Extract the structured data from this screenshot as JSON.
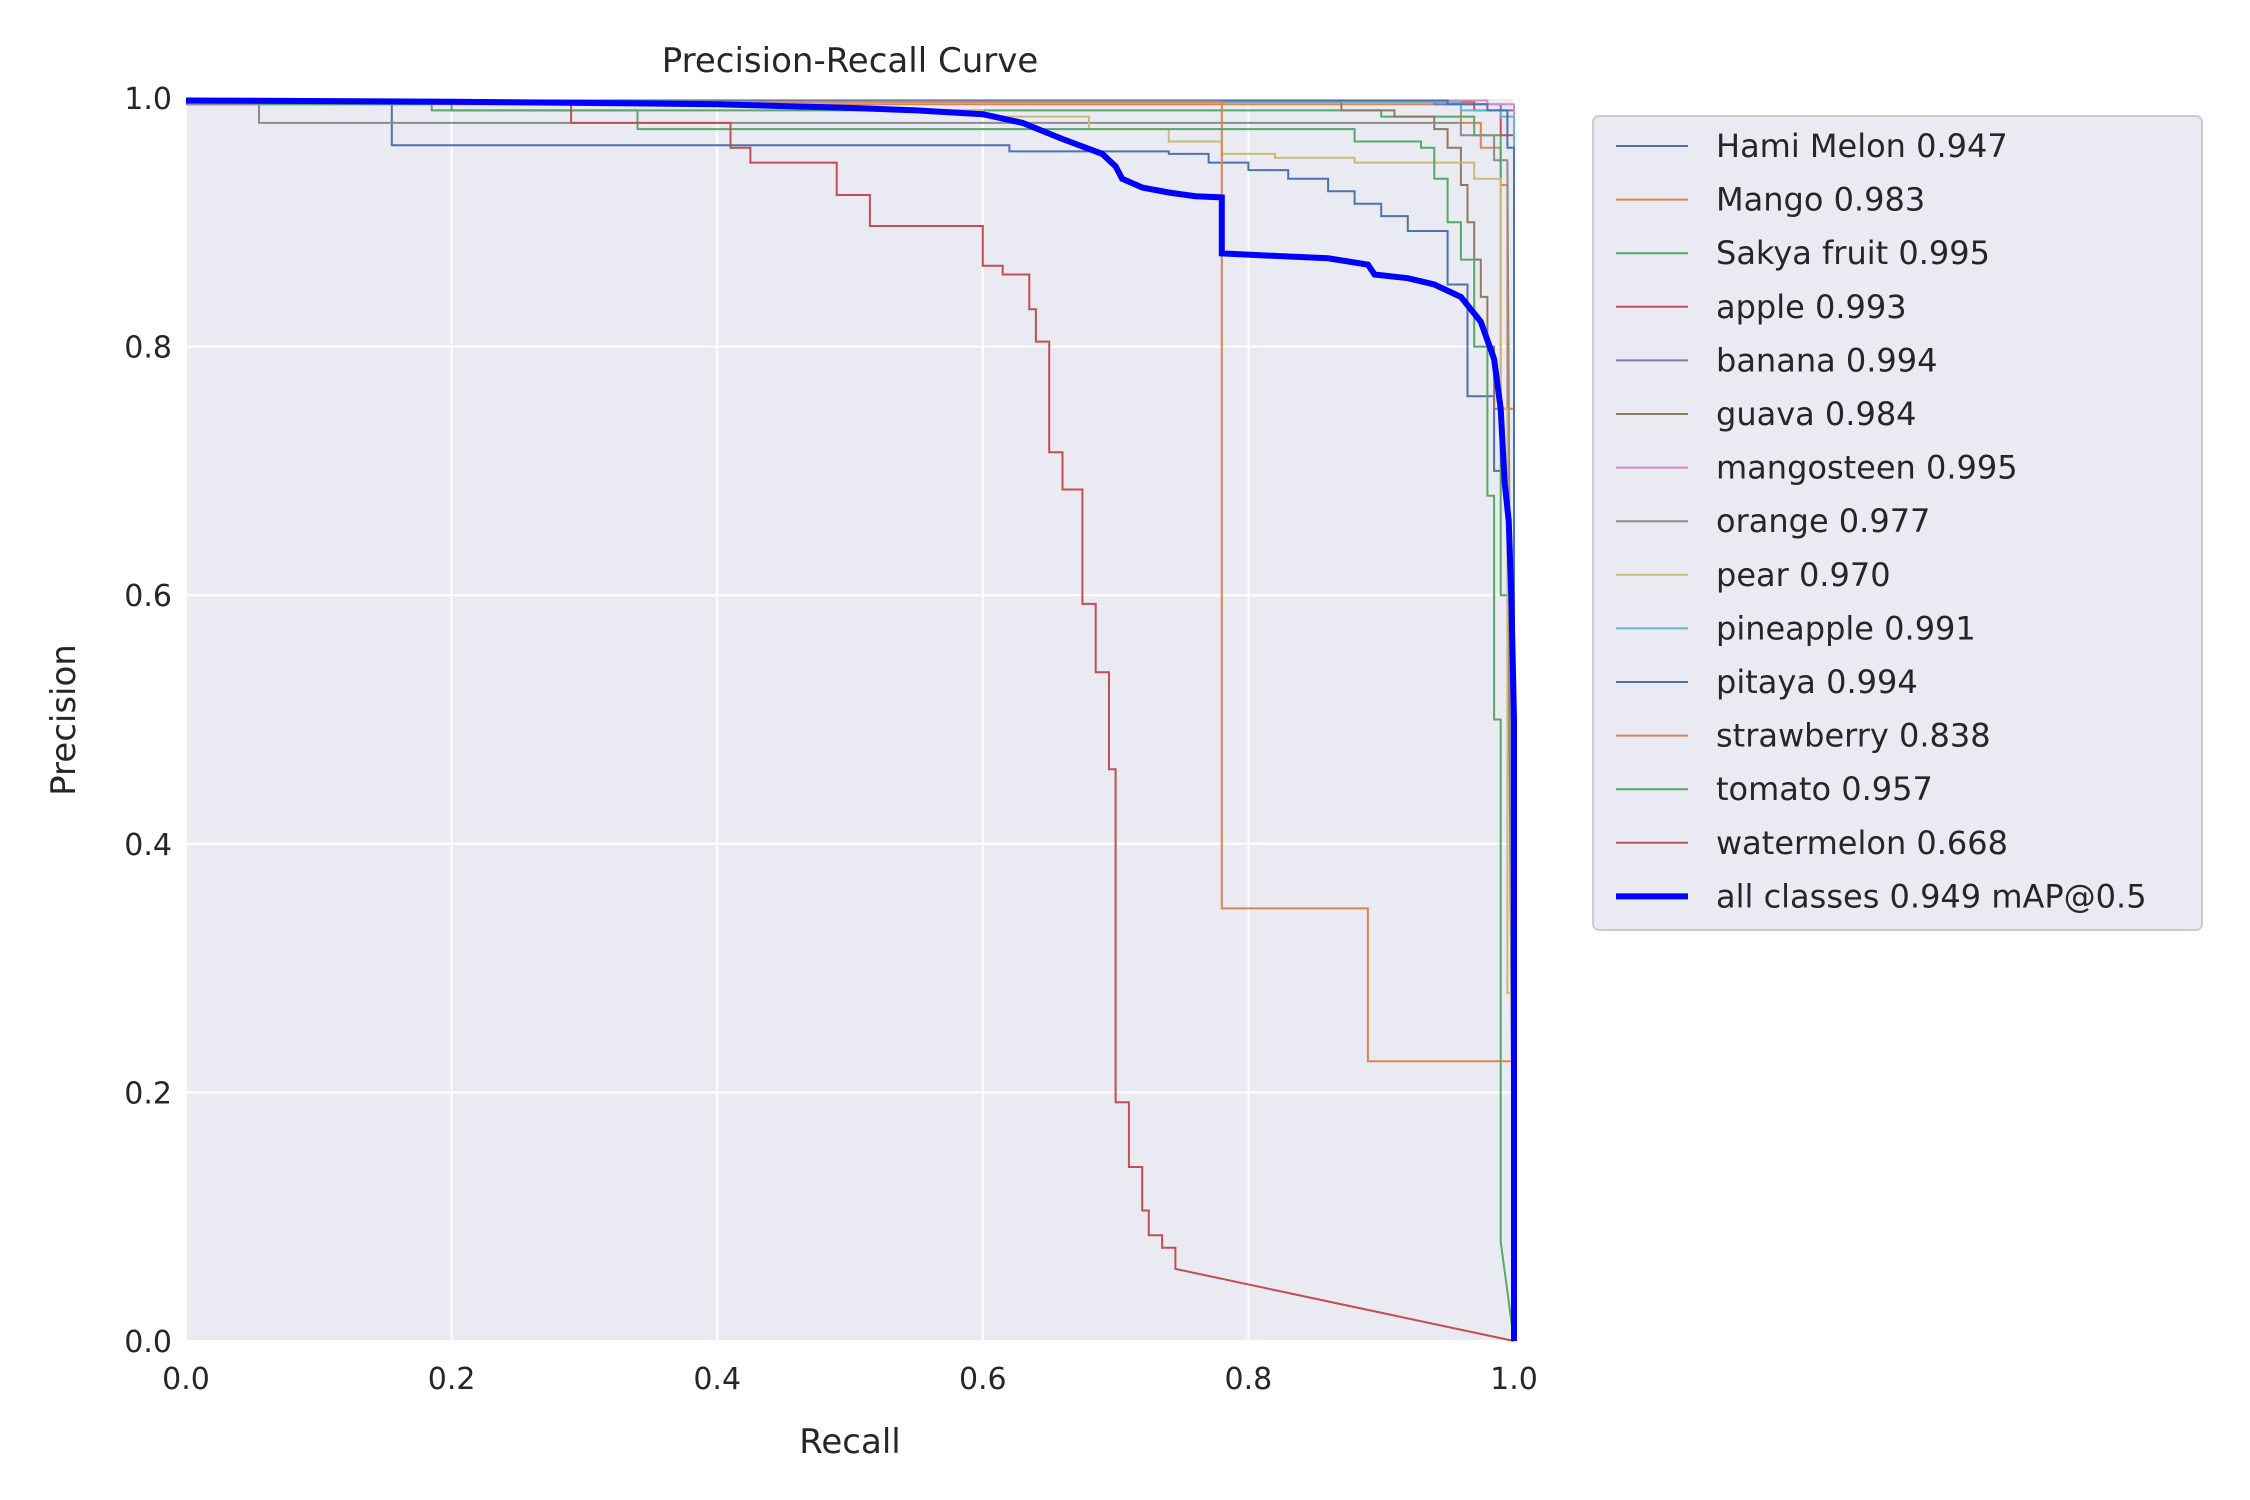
{
  "chart_data": {
    "type": "line",
    "title": "Precision-Recall Curve",
    "xlabel": "Recall",
    "ylabel": "Precision",
    "xlim": [
      0.0,
      1.0
    ],
    "ylim": [
      0.0,
      1.0
    ],
    "xticks": [
      "0.0",
      "0.2",
      "0.4",
      "0.6",
      "0.8",
      "1.0"
    ],
    "yticks": [
      "0.0",
      "0.2",
      "0.4",
      "0.6",
      "0.8",
      "1.0"
    ],
    "grid": true,
    "legend_position": "outside-right-top",
    "series": [
      {
        "label": "Hami Melon 0.947",
        "color": "#4c72b0",
        "width": 2,
        "points": [
          [
            0,
            0.998
          ],
          [
            0.155,
            0.998
          ],
          [
            0.155,
            0.962
          ],
          [
            0.52,
            0.962
          ],
          [
            0.52,
            0.962
          ],
          [
            0.62,
            0.962
          ],
          [
            0.62,
            0.957
          ],
          [
            0.74,
            0.957
          ],
          [
            0.74,
            0.955
          ],
          [
            0.77,
            0.955
          ],
          [
            0.77,
            0.948
          ],
          [
            0.8,
            0.948
          ],
          [
            0.8,
            0.942
          ],
          [
            0.83,
            0.942
          ],
          [
            0.83,
            0.935
          ],
          [
            0.86,
            0.935
          ],
          [
            0.86,
            0.925
          ],
          [
            0.88,
            0.925
          ],
          [
            0.88,
            0.915
          ],
          [
            0.9,
            0.915
          ],
          [
            0.9,
            0.905
          ],
          [
            0.92,
            0.905
          ],
          [
            0.92,
            0.893
          ],
          [
            0.95,
            0.893
          ],
          [
            0.95,
            0.85
          ],
          [
            0.965,
            0.85
          ],
          [
            0.965,
            0.76
          ],
          [
            0.985,
            0.76
          ],
          [
            0.985,
            0.7
          ],
          [
            0.995,
            0.7
          ],
          [
            1.0,
            0.0
          ]
        ]
      },
      {
        "label": "Mango 0.983",
        "color": "#dd8452",
        "width": 2,
        "points": [
          [
            0,
            0.995
          ],
          [
            0.96,
            0.995
          ],
          [
            0.96,
            0.98
          ],
          [
            0.975,
            0.98
          ],
          [
            0.975,
            0.96
          ],
          [
            0.99,
            0.96
          ],
          [
            0.99,
            0.93
          ],
          [
            0.995,
            0.93
          ],
          [
            0.995,
            0.75
          ],
          [
            1.0,
            0.75
          ],
          [
            1.0,
            0.0
          ]
        ]
      },
      {
        "label": "Sakya fruit 0.995",
        "color": "#55a868",
        "width": 2,
        "points": [
          [
            0,
            0.995
          ],
          [
            0.185,
            0.995
          ],
          [
            0.185,
            0.99
          ],
          [
            0.9,
            0.99
          ],
          [
            0.9,
            0.985
          ],
          [
            0.97,
            0.985
          ],
          [
            0.97,
            0.97
          ],
          [
            0.99,
            0.97
          ],
          [
            0.99,
            0.6
          ],
          [
            0.997,
            0.6
          ],
          [
            1.0,
            0.0
          ]
        ]
      },
      {
        "label": "apple 0.993",
        "color": "#c44e52",
        "width": 2,
        "points": [
          [
            0,
            0.997
          ],
          [
            0.97,
            0.997
          ],
          [
            0.97,
            0.99
          ],
          [
            0.99,
            0.99
          ],
          [
            0.99,
            0.97
          ],
          [
            1.0,
            0.97
          ],
          [
            1.0,
            0.0
          ]
        ]
      },
      {
        "label": "banana 0.994",
        "color": "#8172b3",
        "width": 2,
        "points": [
          [
            0,
            0.998
          ],
          [
            0.94,
            0.998
          ],
          [
            0.94,
            0.995
          ],
          [
            0.99,
            0.995
          ],
          [
            0.99,
            0.99
          ],
          [
            1.0,
            0.99
          ],
          [
            1.0,
            0.0
          ]
        ]
      },
      {
        "label": "guava 0.984",
        "color": "#937860",
        "width": 2,
        "points": [
          [
            0,
            0.997
          ],
          [
            0.87,
            0.997
          ],
          [
            0.87,
            0.99
          ],
          [
            0.91,
            0.99
          ],
          [
            0.91,
            0.985
          ],
          [
            0.94,
            0.985
          ],
          [
            0.94,
            0.975
          ],
          [
            0.95,
            0.975
          ],
          [
            0.95,
            0.96
          ],
          [
            0.96,
            0.96
          ],
          [
            0.96,
            0.93
          ],
          [
            0.965,
            0.93
          ],
          [
            0.965,
            0.9
          ],
          [
            0.97,
            0.9
          ],
          [
            0.97,
            0.87
          ],
          [
            0.975,
            0.87
          ],
          [
            0.975,
            0.84
          ],
          [
            0.98,
            0.84
          ],
          [
            0.98,
            0.8
          ],
          [
            0.985,
            0.8
          ],
          [
            0.985,
            0.75
          ],
          [
            0.995,
            0.75
          ],
          [
            1.0,
            0.0
          ]
        ]
      },
      {
        "label": "mangosteen 0.995",
        "color": "#da8bc3",
        "width": 2,
        "points": [
          [
            0,
            0.998
          ],
          [
            0.98,
            0.998
          ],
          [
            0.98,
            0.995
          ],
          [
            1.0,
            0.995
          ],
          [
            1.0,
            0.0
          ]
        ]
      },
      {
        "label": "orange 0.977",
        "color": "#8c8c8c",
        "width": 2,
        "points": [
          [
            0,
            0.995
          ],
          [
            0.055,
            0.995
          ],
          [
            0.055,
            0.98
          ],
          [
            0.5,
            0.98
          ],
          [
            0.5,
            0.98
          ],
          [
            0.96,
            0.98
          ],
          [
            0.96,
            0.97
          ],
          [
            0.985,
            0.97
          ],
          [
            0.985,
            0.95
          ],
          [
            0.995,
            0.95
          ],
          [
            1.0,
            0.0
          ]
        ]
      },
      {
        "label": "pear 0.970",
        "color": "#ccb974",
        "width": 2,
        "points": [
          [
            0,
            0.997
          ],
          [
            0.52,
            0.997
          ],
          [
            0.52,
            0.99
          ],
          [
            0.6,
            0.99
          ],
          [
            0.6,
            0.985
          ],
          [
            0.68,
            0.985
          ],
          [
            0.68,
            0.975
          ],
          [
            0.74,
            0.975
          ],
          [
            0.74,
            0.965
          ],
          [
            0.78,
            0.965
          ],
          [
            0.78,
            0.955
          ],
          [
            0.82,
            0.955
          ],
          [
            0.82,
            0.952
          ],
          [
            0.88,
            0.952
          ],
          [
            0.88,
            0.948
          ],
          [
            0.97,
            0.948
          ],
          [
            0.97,
            0.935
          ],
          [
            0.99,
            0.935
          ],
          [
            0.99,
            0.75
          ],
          [
            0.995,
            0.75
          ],
          [
            0.995,
            0.28
          ],
          [
            1.0,
            0.28
          ],
          [
            1.0,
            0.0
          ]
        ]
      },
      {
        "label": "pineapple 0.991",
        "color": "#64b5cd",
        "width": 2,
        "points": [
          [
            0,
            0.997
          ],
          [
            0.96,
            0.997
          ],
          [
            0.96,
            0.99
          ],
          [
            0.99,
            0.99
          ],
          [
            0.99,
            0.985
          ],
          [
            1.0,
            0.985
          ],
          [
            1.0,
            0.0
          ]
        ]
      },
      {
        "label": "pitaya 0.994",
        "color": "#4c72b0",
        "width": 2,
        "points": [
          [
            0,
            0.998
          ],
          [
            0.95,
            0.998
          ],
          [
            0.95,
            0.995
          ],
          [
            0.98,
            0.995
          ],
          [
            0.98,
            0.99
          ],
          [
            0.995,
            0.99
          ],
          [
            0.995,
            0.96
          ],
          [
            1.0,
            0.96
          ],
          [
            1.0,
            0.0
          ]
        ]
      },
      {
        "label": "strawberry 0.838",
        "color": "#dd8452",
        "width": 2,
        "points": [
          [
            0,
            0.997
          ],
          [
            0.78,
            0.997
          ],
          [
            0.78,
            0.348
          ],
          [
            0.89,
            0.348
          ],
          [
            0.89,
            0.225
          ],
          [
            1.0,
            0.225
          ],
          [
            1.0,
            0.0
          ]
        ]
      },
      {
        "label": "tomato 0.957",
        "color": "#55a868",
        "width": 2,
        "points": [
          [
            0,
            0.997
          ],
          [
            0.2,
            0.997
          ],
          [
            0.2,
            0.99
          ],
          [
            0.34,
            0.99
          ],
          [
            0.34,
            0.975
          ],
          [
            0.7,
            0.975
          ],
          [
            0.7,
            0.975
          ],
          [
            0.88,
            0.975
          ],
          [
            0.88,
            0.965
          ],
          [
            0.93,
            0.965
          ],
          [
            0.93,
            0.96
          ],
          [
            0.94,
            0.96
          ],
          [
            0.94,
            0.935
          ],
          [
            0.95,
            0.935
          ],
          [
            0.95,
            0.9
          ],
          [
            0.96,
            0.9
          ],
          [
            0.96,
            0.87
          ],
          [
            0.97,
            0.87
          ],
          [
            0.97,
            0.8
          ],
          [
            0.98,
            0.8
          ],
          [
            0.98,
            0.68
          ],
          [
            0.985,
            0.68
          ],
          [
            0.985,
            0.5
          ],
          [
            0.99,
            0.5
          ],
          [
            0.99,
            0.08
          ],
          [
            1.0,
            0.0
          ]
        ]
      },
      {
        "label": "watermelon 0.668",
        "color": "#c44e52",
        "width": 2,
        "points": [
          [
            0,
            0.997
          ],
          [
            0.29,
            0.997
          ],
          [
            0.29,
            0.98
          ],
          [
            0.41,
            0.98
          ],
          [
            0.41,
            0.96
          ],
          [
            0.425,
            0.96
          ],
          [
            0.425,
            0.948
          ],
          [
            0.49,
            0.948
          ],
          [
            0.49,
            0.922
          ],
          [
            0.515,
            0.922
          ],
          [
            0.515,
            0.897
          ],
          [
            0.6,
            0.897
          ],
          [
            0.6,
            0.865
          ],
          [
            0.615,
            0.865
          ],
          [
            0.615,
            0.858
          ],
          [
            0.635,
            0.858
          ],
          [
            0.635,
            0.83
          ],
          [
            0.64,
            0.83
          ],
          [
            0.64,
            0.804
          ],
          [
            0.65,
            0.804
          ],
          [
            0.65,
            0.715
          ],
          [
            0.66,
            0.715
          ],
          [
            0.66,
            0.685
          ],
          [
            0.675,
            0.685
          ],
          [
            0.675,
            0.593
          ],
          [
            0.685,
            0.593
          ],
          [
            0.685,
            0.538
          ],
          [
            0.695,
            0.538
          ],
          [
            0.695,
            0.46
          ],
          [
            0.7,
            0.46
          ],
          [
            0.7,
            0.192
          ],
          [
            0.71,
            0.192
          ],
          [
            0.71,
            0.14
          ],
          [
            0.72,
            0.14
          ],
          [
            0.72,
            0.105
          ],
          [
            0.725,
            0.105
          ],
          [
            0.725,
            0.085
          ],
          [
            0.735,
            0.085
          ],
          [
            0.735,
            0.075
          ],
          [
            0.745,
            0.075
          ],
          [
            0.745,
            0.058
          ],
          [
            1.0,
            0.0
          ]
        ]
      },
      {
        "label": "all classes 0.949 mAP@0.5",
        "color": "#0000ff",
        "width": 6,
        "points": [
          [
            0,
            0.998
          ],
          [
            0.2,
            0.997
          ],
          [
            0.4,
            0.995
          ],
          [
            0.5,
            0.992
          ],
          [
            0.55,
            0.99
          ],
          [
            0.6,
            0.987
          ],
          [
            0.63,
            0.98
          ],
          [
            0.66,
            0.967
          ],
          [
            0.69,
            0.955
          ],
          [
            0.7,
            0.945
          ],
          [
            0.705,
            0.935
          ],
          [
            0.72,
            0.928
          ],
          [
            0.74,
            0.924
          ],
          [
            0.76,
            0.921
          ],
          [
            0.78,
            0.92
          ],
          [
            0.78,
            0.875
          ],
          [
            0.82,
            0.873
          ],
          [
            0.86,
            0.871
          ],
          [
            0.89,
            0.866
          ],
          [
            0.895,
            0.858
          ],
          [
            0.92,
            0.855
          ],
          [
            0.94,
            0.85
          ],
          [
            0.96,
            0.84
          ],
          [
            0.975,
            0.82
          ],
          [
            0.985,
            0.79
          ],
          [
            0.99,
            0.75
          ],
          [
            0.993,
            0.69
          ],
          [
            0.996,
            0.66
          ],
          [
            0.998,
            0.6
          ],
          [
            1.0,
            0.5
          ],
          [
            1.0,
            0.0
          ]
        ]
      }
    ]
  }
}
